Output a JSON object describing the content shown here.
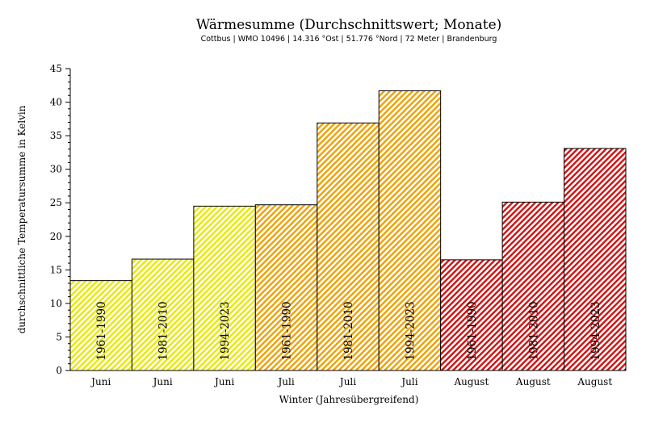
{
  "chart_data": {
    "type": "bar",
    "title": "Wärmesumme (Durchschnittswert; Monate)",
    "subtitle": "Cottbus | WMO 10496 | 14.316 °Ost | 51.776 °Nord | 72 Meter | Brandenburg",
    "xlabel": "Winter (Jahresübergreifend)",
    "ylabel": "durchschnittliche Temperatursumme in Kelvin",
    "ylim": [
      0,
      45
    ],
    "yticks": [
      "0",
      "5",
      "10",
      "15",
      "20",
      "25",
      "30",
      "35",
      "40",
      "45"
    ],
    "grid": false,
    "categories": [
      "Juni",
      "Juni",
      "Juni",
      "Juli",
      "Juli",
      "Juli",
      "August",
      "August",
      "August"
    ],
    "periods": [
      "1961-1990",
      "1981-2010",
      "1994-2023",
      "1961-1990",
      "1981-2010",
      "1994-2023",
      "1961-1990",
      "1981-2010",
      "1994-2023"
    ],
    "values": [
      13.4,
      16.6,
      24.5,
      24.7,
      36.9,
      41.7,
      16.5,
      25.1,
      33.1
    ],
    "colors": [
      "#e8e800",
      "#e8e800",
      "#e8e800",
      "#f0a000",
      "#f0a000",
      "#f0a000",
      "#d01010",
      "#d01010",
      "#d01010"
    ]
  }
}
